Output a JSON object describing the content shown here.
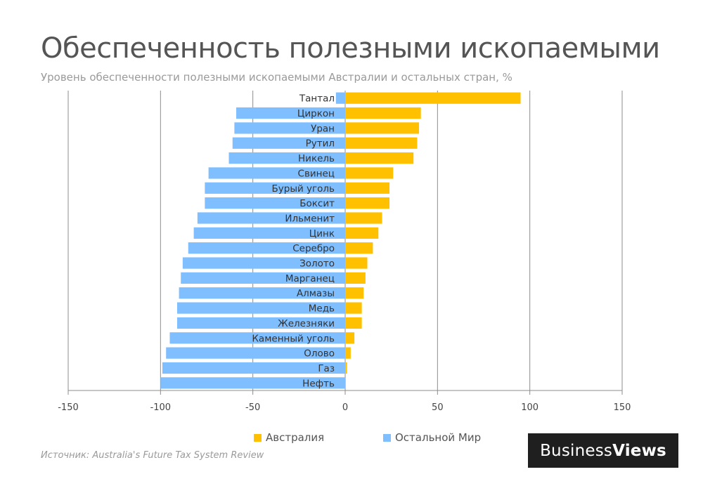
{
  "chart_data": {
    "type": "bar",
    "orientation": "horizontal",
    "title": "Обеспеченность полезными ископаемыми",
    "subtitle": "Уровень обеспеченности полезными ископаемыми  Австралии и остальных стран, %",
    "categories": [
      "Тантал",
      "Циркон",
      "Уран",
      "Рутил",
      "Никель",
      "Свинец",
      "Бурый уголь",
      "Боксит",
      "Ильменит",
      "Цинк",
      "Серебро",
      "Золото",
      "Марганец",
      "Алмазы",
      "Медь",
      "Железняки",
      "Каменный уголь",
      "Олово",
      "Газ",
      "Нефть"
    ],
    "series": [
      {
        "name": "Австралия",
        "color": "#ffc000",
        "values": [
          95,
          41,
          40,
          39,
          37,
          26,
          24,
          24,
          20,
          18,
          15,
          12,
          11,
          10,
          9,
          9,
          5,
          3,
          1,
          0
        ]
      },
      {
        "name": "Остальной Мир",
        "color": "#7fbfff",
        "values": [
          -5,
          -59,
          -60,
          -61,
          -63,
          -74,
          -76,
          -76,
          -80,
          -82,
          -85,
          -88,
          -89,
          -90,
          -91,
          -91,
          -95,
          -97,
          -99,
          -100
        ]
      }
    ],
    "xlim": [
      -150,
      150
    ],
    "xticks": [
      "-150",
      "-100",
      "-50",
      "0",
      "50",
      "100",
      "150"
    ],
    "grid": true,
    "legend_position": "bottom-center"
  },
  "source": "Источник:  Australia's Future Tax System Review",
  "logo": {
    "part1": "Business",
    "part2": "Views"
  }
}
